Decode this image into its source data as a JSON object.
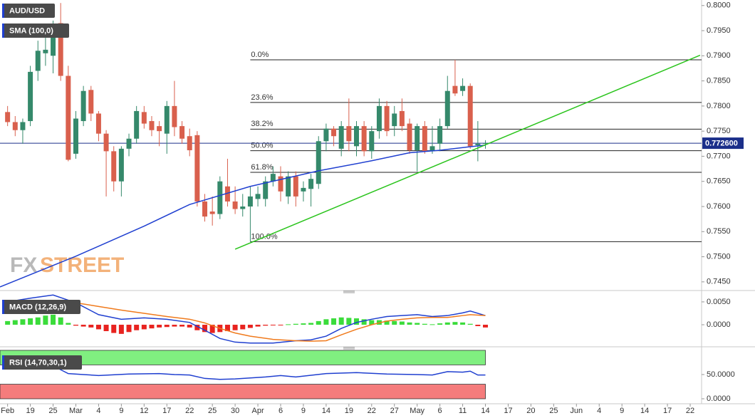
{
  "chart_data": [
    {
      "type": "candlestick",
      "title": "AUD/USD",
      "indicator": "SMA (100,0)",
      "watermark": [
        "FX",
        "STREET"
      ],
      "up_color": "#35896b",
      "down_color": "#d9604d",
      "x": [
        0,
        1,
        2,
        3,
        4,
        5,
        6,
        7,
        8,
        9,
        10,
        11,
        12,
        13,
        14,
        15,
        16,
        17,
        18,
        19,
        20,
        21,
        22,
        23,
        24,
        25,
        26,
        27,
        28,
        29,
        30,
        31,
        32,
        33,
        34,
        35,
        36,
        37,
        38,
        39,
        40,
        41,
        42,
        43,
        44,
        45,
        46,
        47,
        48,
        49,
        50,
        51,
        52,
        53,
        54,
        55,
        56,
        57,
        58,
        59,
        60,
        61,
        62,
        63
      ],
      "open": [
        0.7788,
        0.7768,
        0.7752,
        0.777,
        0.787,
        0.7905,
        0.79,
        0.7965,
        0.786,
        0.7705,
        0.777,
        0.7832,
        0.7785,
        0.7745,
        0.771,
        0.765,
        0.7715,
        0.7735,
        0.7788,
        0.777,
        0.776,
        0.7745,
        0.78,
        0.776,
        0.774,
        0.7742,
        0.761,
        0.759,
        0.7585,
        0.764,
        0.761,
        0.7595,
        0.76,
        0.7615,
        0.7615,
        0.765,
        0.766,
        0.762,
        0.766,
        0.763,
        0.7635,
        0.7645,
        0.773,
        0.7755,
        0.7715,
        0.776,
        0.772,
        0.776,
        0.771,
        0.775,
        0.78,
        0.776,
        0.779,
        0.7765,
        0.7712,
        0.776,
        0.771,
        0.7725,
        0.776,
        0.784,
        0.783,
        0.784,
        0.7722,
        0.7725
      ],
      "high": [
        0.78,
        0.778,
        0.7775,
        0.788,
        0.793,
        0.795,
        0.797,
        0.8005,
        0.788,
        0.779,
        0.784,
        0.784,
        0.779,
        0.7752,
        0.772,
        0.772,
        0.7745,
        0.78,
        0.78,
        0.778,
        0.777,
        0.781,
        0.785,
        0.777,
        0.7755,
        0.775,
        0.7625,
        0.762,
        0.766,
        0.7695,
        0.764,
        0.7625,
        0.764,
        0.764,
        0.766,
        0.768,
        0.768,
        0.767,
        0.767,
        0.765,
        0.7665,
        0.774,
        0.7765,
        0.776,
        0.777,
        0.7815,
        0.777,
        0.777,
        0.776,
        0.7815,
        0.781,
        0.78,
        0.7815,
        0.7775,
        0.7765,
        0.777,
        0.776,
        0.7775,
        0.786,
        0.7892,
        0.7855,
        0.7845,
        0.777,
        0.7732
      ],
      "low": [
        0.776,
        0.774,
        0.7725,
        0.776,
        0.785,
        0.788,
        0.7865,
        0.785,
        0.769,
        0.7695,
        0.776,
        0.777,
        0.773,
        0.762,
        0.763,
        0.762,
        0.77,
        0.7725,
        0.7755,
        0.774,
        0.772,
        0.7705,
        0.774,
        0.7725,
        0.77,
        0.76,
        0.757,
        0.7562,
        0.7575,
        0.76,
        0.7585,
        0.758,
        0.753,
        0.76,
        0.76,
        0.764,
        0.761,
        0.7605,
        0.76,
        0.761,
        0.76,
        0.7635,
        0.771,
        0.772,
        0.77,
        0.771,
        0.77,
        0.77,
        0.7695,
        0.7735,
        0.774,
        0.774,
        0.775,
        0.7705,
        0.767,
        0.7705,
        0.7705,
        0.771,
        0.7755,
        0.782,
        0.782,
        0.7715,
        0.769,
        0.7715
      ],
      "close": [
        0.7768,
        0.7752,
        0.7768,
        0.7868,
        0.791,
        0.7912,
        0.796,
        0.786,
        0.7693,
        0.7775,
        0.783,
        0.7785,
        0.7745,
        0.771,
        0.765,
        0.7715,
        0.7735,
        0.779,
        0.7765,
        0.7752,
        0.775,
        0.78,
        0.7758,
        0.7735,
        0.7712,
        0.761,
        0.758,
        0.7585,
        0.765,
        0.761,
        0.7595,
        0.76,
        0.762,
        0.7625,
        0.765,
        0.7665,
        0.763,
        0.766,
        0.762,
        0.7637,
        0.7655,
        0.773,
        0.7755,
        0.774,
        0.776,
        0.773,
        0.776,
        0.771,
        0.775,
        0.78,
        0.775,
        0.7785,
        0.776,
        0.7712,
        0.776,
        0.771,
        0.772,
        0.776,
        0.783,
        0.7825,
        0.784,
        0.772,
        0.7725,
        0.7726
      ],
      "sma": {
        "color": "#1f3fd0",
        "x": [
          -1,
          9,
          18,
          24,
          32,
          41,
          48,
          53,
          57,
          61,
          63
        ],
        "values": [
          0.744,
          0.7501,
          0.7561,
          0.7604,
          0.764,
          0.7671,
          0.7691,
          0.7707,
          0.7712,
          0.7719,
          0.7722
        ]
      },
      "trendline": {
        "color": "#2ac41c",
        "x": [
          30,
          91.3
        ],
        "values": [
          0.7515,
          0.7901
        ]
      },
      "fib": {
        "start": 32,
        "labels": [
          "0.0%",
          "23.6%",
          "38.2%",
          "50.0%",
          "61.8%",
          "100.0%"
        ],
        "values": [
          0.7892,
          0.7807,
          0.7754,
          0.7711,
          0.7668,
          0.753
        ]
      },
      "last_price": {
        "value": 0.7726,
        "label": "0.772600",
        "color": "#1b2f8a"
      },
      "xlim": [
        -1,
        91.5
      ],
      "ylim": [
        0.7437,
        0.8011
      ],
      "yticks": [
        {
          "value": 0.8,
          "label": "0.8000"
        },
        {
          "value": 0.795,
          "label": "0.7950"
        },
        {
          "value": 0.79,
          "label": "0.7900"
        },
        {
          "value": 0.785,
          "label": "0.7850"
        },
        {
          "value": 0.78,
          "label": "0.7800"
        },
        {
          "value": 0.775,
          "label": "0.7750"
        },
        {
          "value": 0.77,
          "label": "0.7700"
        },
        {
          "value": 0.765,
          "label": "0.7650"
        },
        {
          "value": 0.76,
          "label": "0.7600"
        },
        {
          "value": 0.755,
          "label": "0.7550"
        },
        {
          "value": 0.75,
          "label": "0.7500"
        },
        {
          "value": 0.745,
          "label": "0.7450"
        }
      ],
      "xticks": [
        {
          "value": 0,
          "label": "Feb"
        },
        {
          "value": 3,
          "label": "19"
        },
        {
          "value": 6,
          "label": "25"
        },
        {
          "value": 9,
          "label": "Mar"
        },
        {
          "value": 12,
          "label": "4"
        },
        {
          "value": 15,
          "label": "9"
        },
        {
          "value": 18,
          "label": "12"
        },
        {
          "value": 21,
          "label": "17"
        },
        {
          "value": 24,
          "label": "22"
        },
        {
          "value": 27,
          "label": "25"
        },
        {
          "value": 30,
          "label": "30"
        },
        {
          "value": 33,
          "label": "Apr"
        },
        {
          "value": 36,
          "label": "6"
        },
        {
          "value": 39,
          "label": "9"
        },
        {
          "value": 42,
          "label": "14"
        },
        {
          "value": 45,
          "label": "19"
        },
        {
          "value": 48,
          "label": "22"
        },
        {
          "value": 51,
          "label": "27"
        },
        {
          "value": 54,
          "label": "May"
        },
        {
          "value": 57,
          "label": "6"
        },
        {
          "value": 60,
          "label": "11"
        },
        {
          "value": 63,
          "label": "14"
        },
        {
          "value": 66,
          "label": "17"
        },
        {
          "value": 69,
          "label": "20"
        },
        {
          "value": 72,
          "label": "25"
        },
        {
          "value": 75,
          "label": "Jun"
        },
        {
          "value": 78,
          "label": "4"
        },
        {
          "value": 81,
          "label": "9"
        },
        {
          "value": 84,
          "label": "14"
        },
        {
          "value": 87,
          "label": "17"
        },
        {
          "value": 90,
          "label": "22"
        }
      ]
    },
    {
      "type": "macd",
      "title": "MACD (12,26,9)",
      "up_color": "#3bdc3b",
      "down_color": "#e8231f",
      "histogram": [
        0.0008,
        0.001,
        0.0012,
        0.0014,
        0.0016,
        0.002,
        0.0022,
        0.0016,
        0.0004,
        -0.0002,
        -0.0004,
        -0.0006,
        -0.001,
        -0.0014,
        -0.0018,
        -0.002,
        -0.0016,
        -0.0012,
        -0.001,
        -0.0008,
        -0.0006,
        -0.0005,
        -0.0004,
        -0.0004,
        -0.0006,
        -0.0012,
        -0.0016,
        -0.0018,
        -0.0016,
        -0.0014,
        -0.0012,
        -0.001,
        -0.0007,
        -0.0004,
        -0.0002,
        -0.0001,
        -0.0001,
        0.0001,
        0.0002,
        0.0003,
        0.0004,
        0.0008,
        0.0012,
        0.0014,
        0.0016,
        0.0015,
        0.0014,
        0.0012,
        0.001,
        0.001,
        0.0009,
        0.0008,
        0.0007,
        0.0005,
        0.0004,
        0.0002,
        0.0001,
        0.0003,
        0.0005,
        0.0006,
        0.0005,
        0.0002,
        -0.0003,
        -0.0006
      ],
      "series": [
        {
          "color": "#1f3fd0",
          "x": [
            0,
            3,
            6,
            9,
            12,
            15,
            18,
            21,
            24,
            26,
            28,
            30,
            32,
            35,
            38,
            40,
            42,
            44,
            46,
            48,
            50,
            52,
            54,
            56,
            58,
            60,
            61,
            63
          ],
          "values": [
            0.005,
            0.0058,
            0.0065,
            0.0048,
            0.0022,
            0.0012,
            0.0015,
            0.0012,
            0.0005,
            -0.0012,
            -0.003,
            -0.0038,
            -0.004,
            -0.004,
            -0.0035,
            -0.0033,
            -0.0025,
            -0.0008,
            0.0005,
            0.0012,
            0.0018,
            0.002,
            0.0022,
            0.0018,
            0.002,
            0.0026,
            0.003,
            0.002
          ]
        },
        {
          "color": "#f07a1c",
          "x": [
            0,
            3,
            6,
            9,
            12,
            15,
            18,
            21,
            24,
            26,
            28,
            30,
            32,
            35,
            38,
            40,
            42,
            44,
            46,
            48,
            50,
            52,
            54,
            56,
            58,
            60,
            61,
            63
          ],
          "values": [
            0.004,
            0.0044,
            0.0048,
            0.0048,
            0.004,
            0.0032,
            0.0025,
            0.0018,
            0.0012,
            0.0004,
            -0.0008,
            -0.0018,
            -0.0025,
            -0.0032,
            -0.0035,
            -0.0036,
            -0.0035,
            -0.0022,
            -0.001,
            0.0,
            0.0008,
            0.0012,
            0.0015,
            0.0016,
            0.0016,
            0.002,
            0.0022,
            0.002
          ]
        }
      ],
      "ylim": [
        -0.0042,
        0.0067
      ],
      "yticks": [
        {
          "value": 0.005,
          "label": "0.0050"
        },
        {
          "value": 0,
          "label": "0.0000"
        }
      ]
    },
    {
      "type": "rsi",
      "title": "RSI (14,70,30,1)",
      "color": "#1f3fd0",
      "x": [
        0,
        3,
        6,
        8,
        10,
        12,
        16,
        20,
        22,
        24,
        26,
        28,
        30,
        34,
        36,
        38,
        42,
        46,
        50,
        54,
        56,
        58,
        60,
        61,
        62,
        63
      ],
      "values": [
        70,
        62,
        68,
        52,
        50,
        48,
        51,
        52,
        50,
        49,
        42,
        40,
        41,
        45,
        48,
        45,
        52,
        54,
        51,
        50,
        49,
        56,
        55,
        57,
        49,
        49
      ],
      "bands": [
        {
          "from": 70,
          "to": 100,
          "color": "#80ef80"
        },
        {
          "from": 0,
          "to": 30,
          "color": "#f57c7c"
        }
      ],
      "ylim": [
        -10.3,
        102.9
      ],
      "yticks": [
        {
          "value": 50,
          "label": "50.0000"
        },
        {
          "value": 0,
          "label": "0.0000"
        }
      ]
    }
  ]
}
